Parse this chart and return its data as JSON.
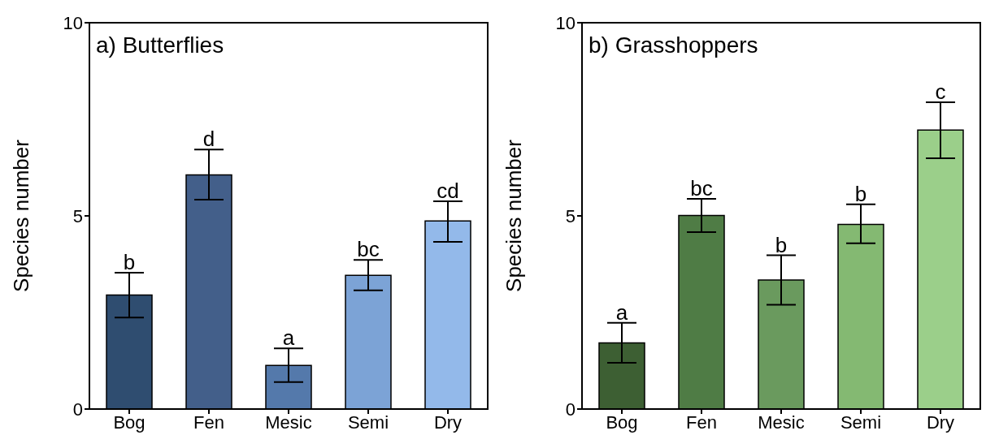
{
  "chart_data": [
    {
      "type": "bar",
      "title": "a) Butterflies",
      "ylabel": "Species number",
      "categories": [
        "Bog",
        "Fen",
        "Mesic",
        "Semi",
        "Dry"
      ],
      "values": [
        2.95,
        6.06,
        1.13,
        3.46,
        4.87
      ],
      "colors": [
        "#2f4d70",
        "#435f8a",
        "#5479ab",
        "#7ca3d6",
        "#93b9ea"
      ],
      "errors": [
        [
          2.37,
          3.53
        ],
        [
          5.42,
          6.72
        ],
        [
          0.7,
          1.57
        ],
        [
          3.07,
          3.86
        ],
        [
          4.33,
          5.38
        ]
      ],
      "ylim": [
        0,
        10
      ],
      "yticks": [
        0,
        5,
        10
      ],
      "grid": false,
      "legend": false,
      "annotations": [
        {
          "text": "b",
          "x": "Bog",
          "y": 3.53
        },
        {
          "text": "d",
          "x": "Fen",
          "y": 6.72
        },
        {
          "text": "a",
          "x": "Mesic",
          "y": 1.57
        },
        {
          "text": "bc",
          "x": "Semi",
          "y": 3.86
        },
        {
          "text": "cd",
          "x": "Dry",
          "y": 5.38
        }
      ]
    },
    {
      "type": "bar",
      "title": "b) Grasshoppers",
      "ylabel": "Species number",
      "categories": [
        "Bog",
        "Fen",
        "Mesic",
        "Semi",
        "Dry"
      ],
      "values": [
        1.71,
        5.01,
        3.34,
        4.78,
        7.22
      ],
      "colors": [
        "#3d5f33",
        "#4f7c45",
        "#6a9a5e",
        "#84b972",
        "#9bcf8a"
      ],
      "errors": [
        [
          1.2,
          2.23
        ],
        [
          4.58,
          5.44
        ],
        [
          2.7,
          3.98
        ],
        [
          4.29,
          5.3
        ],
        [
          6.49,
          7.94
        ]
      ],
      "ylim": [
        0,
        10
      ],
      "yticks": [
        0,
        5,
        10
      ],
      "grid": false,
      "legend": false,
      "annotations": [
        {
          "text": "a",
          "x": "Bog",
          "y": 2.23
        },
        {
          "text": "bc",
          "x": "Fen",
          "y": 5.44
        },
        {
          "text": "b",
          "x": "Mesic",
          "y": 3.98
        },
        {
          "text": "b",
          "x": "Semi",
          "y": 5.3
        },
        {
          "text": "c",
          "x": "Dry",
          "y": 7.94
        }
      ]
    }
  ]
}
